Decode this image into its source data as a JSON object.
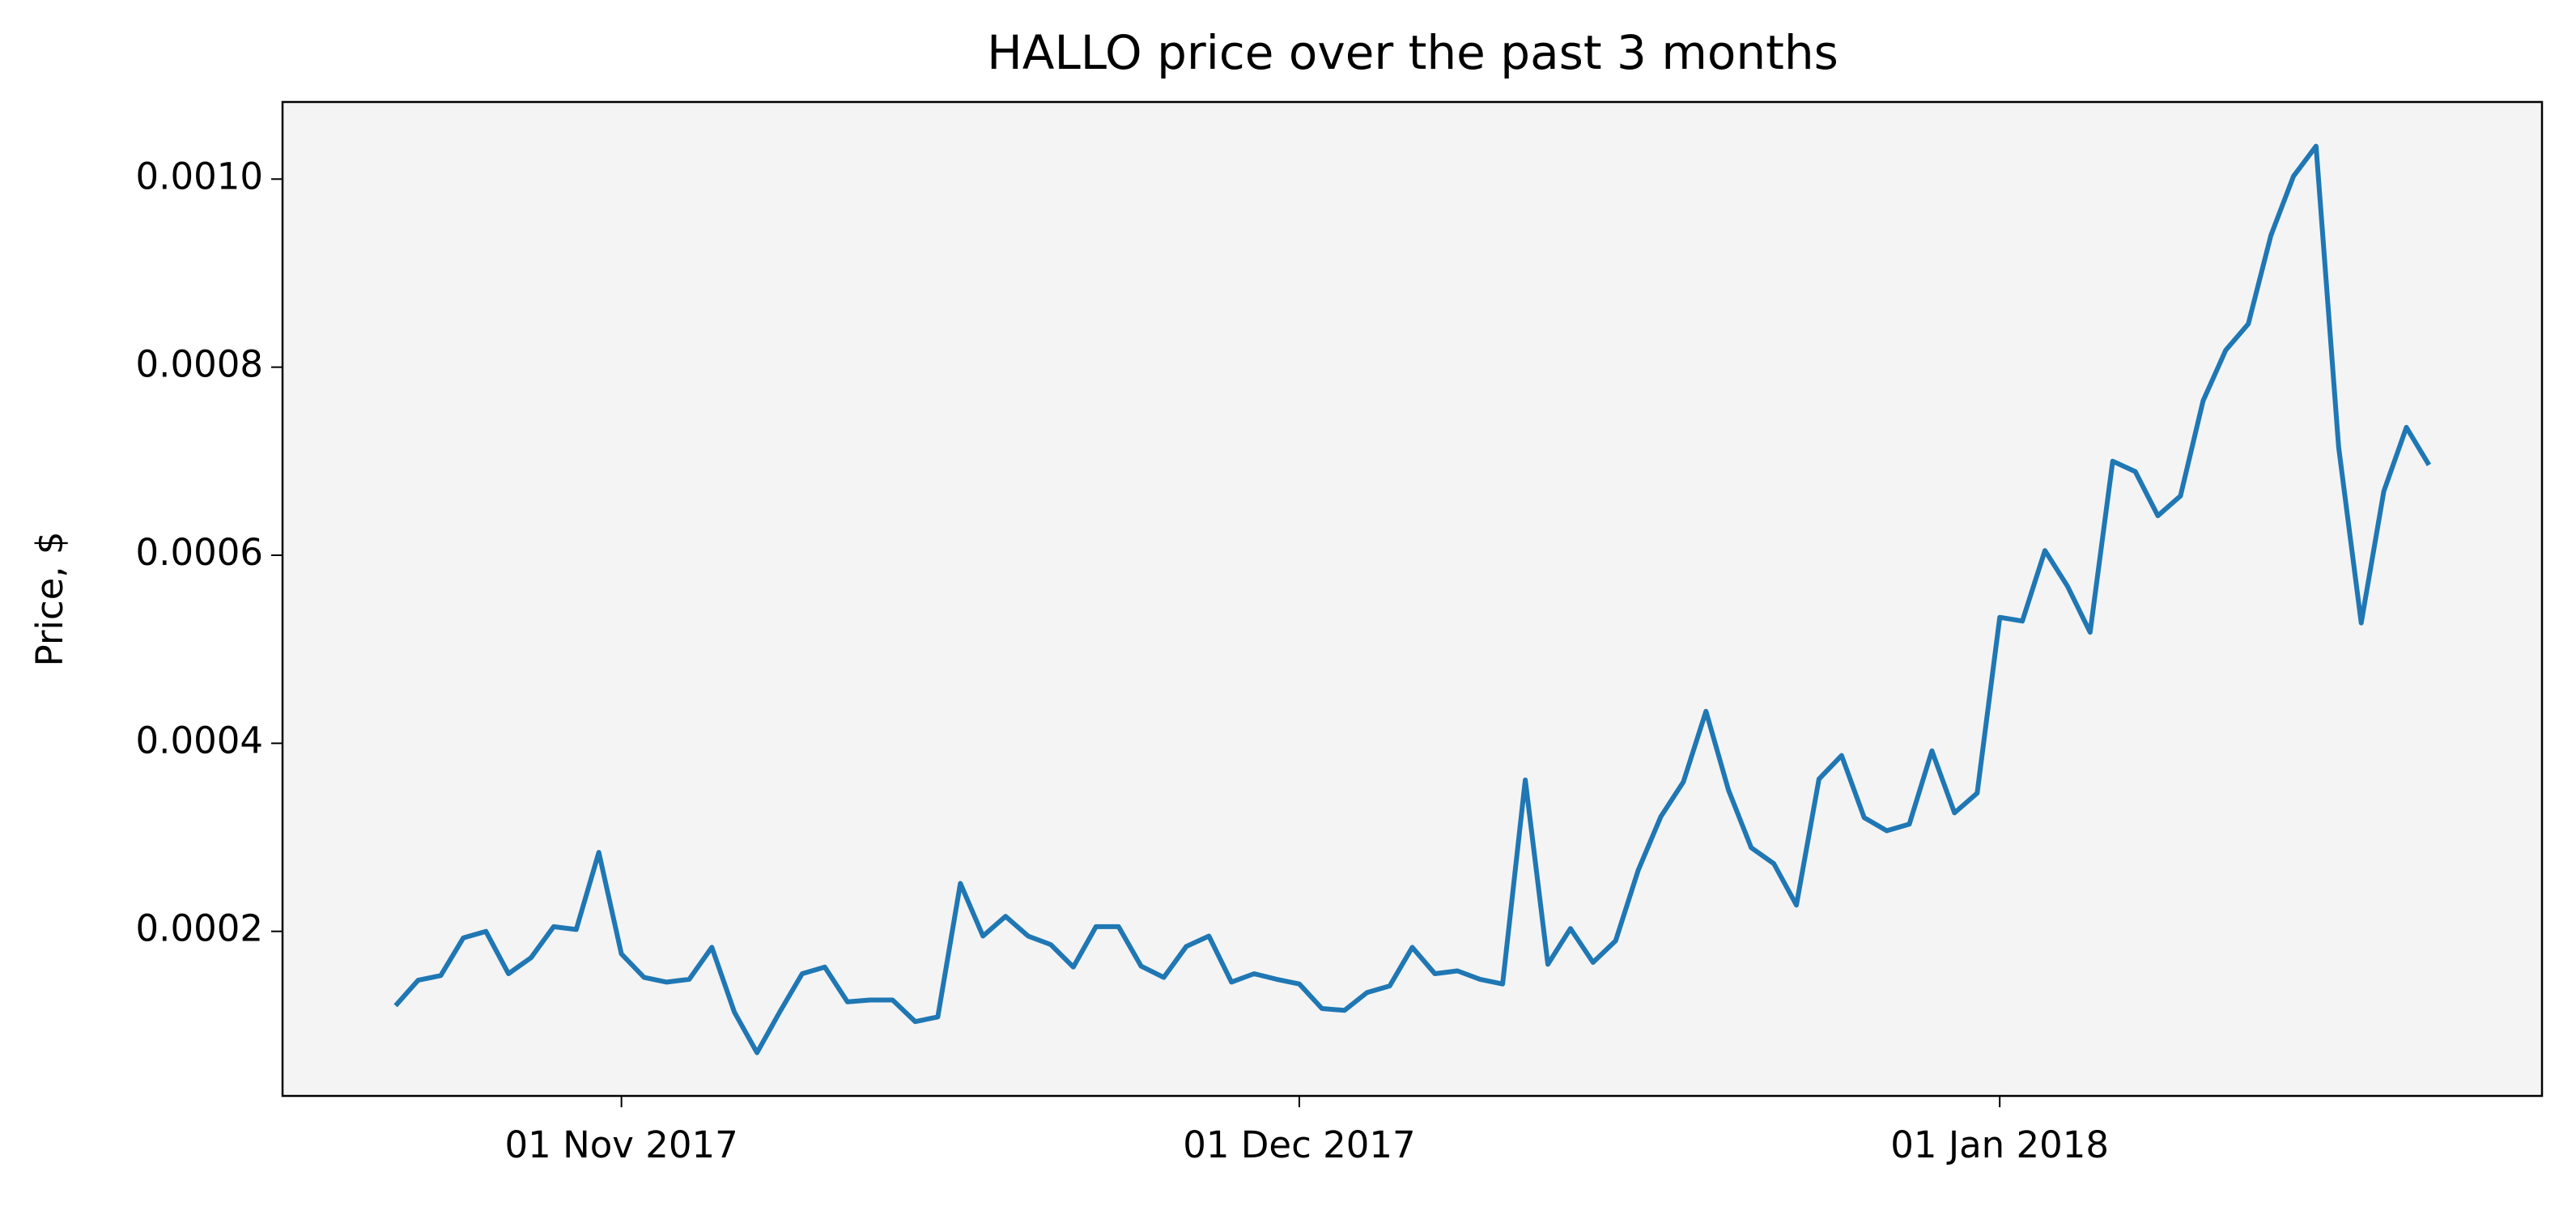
{
  "chart_data": {
    "type": "line",
    "title": "HALLO price over the past 3 months",
    "ylabel": "Price, $",
    "x": [
      "2017-10-22",
      "2017-10-23",
      "2017-10-24",
      "2017-10-25",
      "2017-10-26",
      "2017-10-27",
      "2017-10-28",
      "2017-10-29",
      "2017-10-30",
      "2017-10-31",
      "2017-11-01",
      "2017-11-02",
      "2017-11-03",
      "2017-11-04",
      "2017-11-05",
      "2017-11-06",
      "2017-11-07",
      "2017-11-08",
      "2017-11-09",
      "2017-11-10",
      "2017-11-11",
      "2017-11-12",
      "2017-11-13",
      "2017-11-14",
      "2017-11-15",
      "2017-11-16",
      "2017-11-17",
      "2017-11-18",
      "2017-11-19",
      "2017-11-20",
      "2017-11-21",
      "2017-11-22",
      "2017-11-23",
      "2017-11-24",
      "2017-11-25",
      "2017-11-26",
      "2017-11-27",
      "2017-11-28",
      "2017-11-29",
      "2017-11-30",
      "2017-12-01",
      "2017-12-02",
      "2017-12-03",
      "2017-12-04",
      "2017-12-05",
      "2017-12-06",
      "2017-12-07",
      "2017-12-08",
      "2017-12-09",
      "2017-12-10",
      "2017-12-11",
      "2017-12-12",
      "2017-12-13",
      "2017-12-14",
      "2017-12-15",
      "2017-12-16",
      "2017-12-17",
      "2017-12-18",
      "2017-12-19",
      "2017-12-20",
      "2017-12-21",
      "2017-12-22",
      "2017-12-23",
      "2017-12-24",
      "2017-12-25",
      "2017-12-26",
      "2017-12-27",
      "2017-12-28",
      "2017-12-29",
      "2017-12-30",
      "2017-12-31",
      "2018-01-01",
      "2018-01-02",
      "2018-01-03",
      "2018-01-04",
      "2018-01-05",
      "2018-01-06",
      "2018-01-07",
      "2018-01-08",
      "2018-01-09",
      "2018-01-10",
      "2018-01-11",
      "2018-01-12",
      "2018-01-13",
      "2018-01-14",
      "2018-01-15",
      "2018-01-16",
      "2018-01-17",
      "2018-01-18",
      "2018-01-19",
      "2018-01-20"
    ],
    "series": [
      {
        "name": "HALLO",
        "color": "#1f77b4",
        "values": [
          0.000121,
          0.000148,
          0.000153,
          0.000193,
          0.0002,
          0.000155,
          0.000172,
          0.000205,
          0.000202,
          0.000284,
          0.000176,
          0.000151,
          0.000146,
          0.000149,
          0.000183,
          0.000114,
          7.1e-05,
          0.000114,
          0.000155,
          0.000162,
          0.000125,
          0.000127,
          0.000127,
          0.000104,
          0.000109,
          0.000251,
          0.000195,
          0.000216,
          0.000195,
          0.000186,
          0.000162,
          0.000205,
          0.000205,
          0.000163,
          0.000151,
          0.000184,
          0.000195,
          0.000146,
          0.000155,
          0.000149,
          0.000144,
          0.000118,
          0.000116,
          0.000135,
          0.000142,
          0.000183,
          0.000155,
          0.000158,
          0.000149,
          0.000144,
          0.000361,
          0.000165,
          0.000203,
          0.000167,
          0.00019,
          0.000265,
          0.000322,
          0.000359,
          0.000434,
          0.00035,
          0.000289,
          0.000272,
          0.000228,
          0.000362,
          0.000387,
          0.000321,
          0.000307,
          0.000314,
          0.000392,
          0.000326,
          0.000347,
          0.000534,
          0.00053,
          0.000605,
          0.000567,
          0.000518,
          0.0007,
          0.000689,
          0.000642,
          0.000663,
          0.000764,
          0.000818,
          0.000846,
          0.00094,
          0.001003,
          0.001035,
          0.000715,
          0.000528,
          0.000668,
          0.000736,
          0.000696
        ]
      }
    ],
    "xlim": [
      "2017-10-17",
      "2018-01-25"
    ],
    "xticks": [
      {
        "value": "2017-11-01",
        "label": "01 Nov 2017"
      },
      {
        "value": "2017-12-01",
        "label": "01 Dec 2017"
      },
      {
        "value": "2018-01-01",
        "label": "01 Jan 2018"
      }
    ],
    "ylim": [
      2.5e-05,
      0.001082
    ],
    "yticks": [
      0.0002,
      0.0004,
      0.0006,
      0.0008,
      {
        "value": 0.001,
        "label": "0.0010"
      }
    ],
    "grid": false
  }
}
